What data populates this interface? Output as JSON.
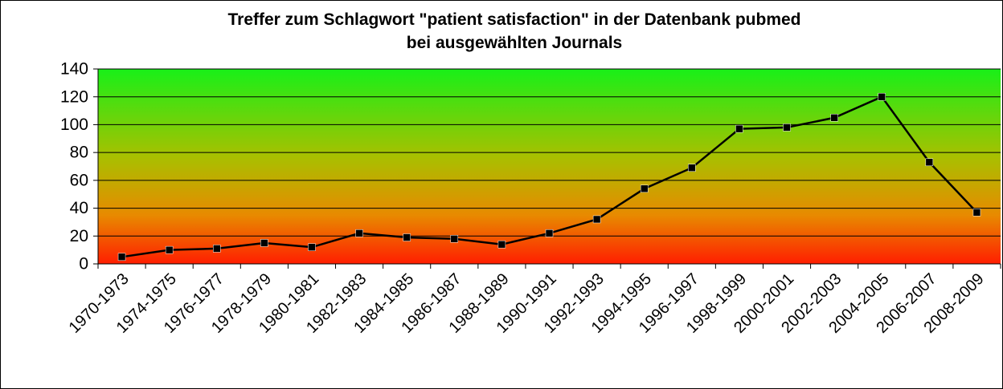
{
  "chart_data": {
    "type": "line",
    "title": [
      "Treffer zum Schlagwort \"patient satisfaction\" in der Datenbank pubmed",
      "bei ausgewählten Journals"
    ],
    "categories": [
      "1970-1973",
      "1974-1975",
      "1976-1977",
      "1978-1979",
      "1980-1981",
      "1982-1983",
      "1984-1985",
      "1986-1987",
      "1988-1989",
      "1990-1991",
      "1992-1993",
      "1994-1995",
      "1996-1997",
      "1998-1999",
      "2000-2001",
      "2002-2003",
      "2004-2005",
      "2006-2007",
      "2008-2009"
    ],
    "values": [
      5,
      10,
      11,
      15,
      12,
      22,
      19,
      18,
      14,
      22,
      32,
      54,
      69,
      97,
      98,
      105,
      120,
      73,
      37
    ],
    "color": "#000000",
    "ylim": [
      0,
      140
    ],
    "yticks": [
      0,
      20,
      40,
      60,
      80,
      100,
      120,
      140
    ],
    "grid": true
  }
}
